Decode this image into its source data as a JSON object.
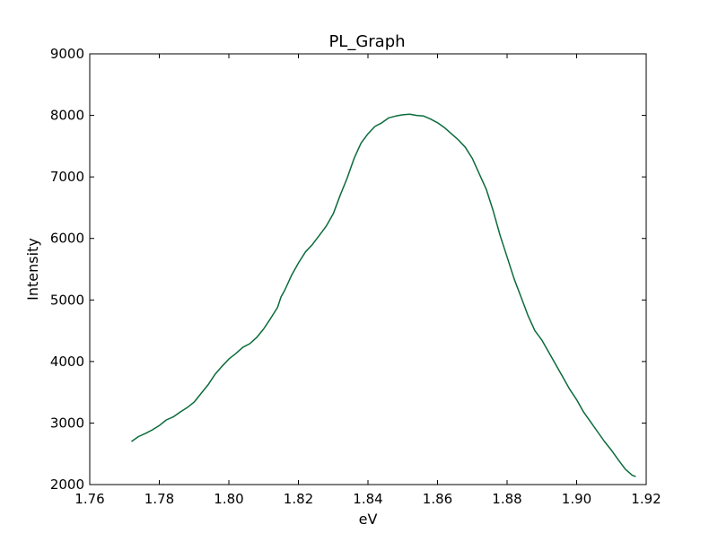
{
  "chart_data": {
    "type": "line",
    "title": "PL_Graph",
    "xlabel": "eV",
    "ylabel": "Intensity",
    "xlim": [
      1.76,
      1.92
    ],
    "ylim": [
      2000,
      9000
    ],
    "x_ticks": [
      "1.76",
      "1.78",
      "1.80",
      "1.82",
      "1.84",
      "1.86",
      "1.88",
      "1.90",
      "1.92"
    ],
    "y_ticks": [
      "2000",
      "3000",
      "4000",
      "5000",
      "6000",
      "7000",
      "8000",
      "9000"
    ],
    "grid": false,
    "line_color": "#0a6b3a",
    "series": [
      {
        "x": [
          1.772,
          1.774,
          1.776,
          1.778,
          1.78,
          1.782,
          1.784,
          1.786,
          1.788,
          1.79,
          1.792,
          1.794,
          1.796,
          1.798,
          1.8,
          1.802,
          1.804,
          1.806,
          1.808,
          1.81,
          1.812,
          1.814,
          1.815,
          1.816,
          1.818,
          1.82,
          1.822,
          1.824,
          1.826,
          1.828,
          1.83,
          1.832,
          1.834,
          1.836,
          1.838,
          1.84,
          1.842,
          1.844,
          1.846,
          1.848,
          1.85,
          1.852,
          1.854,
          1.856,
          1.858,
          1.86,
          1.862,
          1.864,
          1.866,
          1.868,
          1.87,
          1.872,
          1.874,
          1.876,
          1.878,
          1.88,
          1.882,
          1.884,
          1.886,
          1.888,
          1.89,
          1.892,
          1.894,
          1.896,
          1.898,
          1.9,
          1.902,
          1.904,
          1.906,
          1.908,
          1.91,
          1.912,
          1.914,
          1.916,
          1.917
        ],
        "y": [
          2700,
          2780,
          2830,
          2890,
          2960,
          3050,
          3100,
          3180,
          3250,
          3340,
          3480,
          3620,
          3790,
          3920,
          4040,
          4130,
          4230,
          4290,
          4390,
          4530,
          4700,
          4880,
          5050,
          5150,
          5400,
          5600,
          5780,
          5900,
          6050,
          6200,
          6400,
          6700,
          6980,
          7300,
          7550,
          7700,
          7820,
          7880,
          7960,
          7990,
          8010,
          8020,
          8000,
          7990,
          7940,
          7880,
          7800,
          7700,
          7600,
          7480,
          7300,
          7050,
          6800,
          6450,
          6050,
          5700,
          5350,
          5050,
          4750,
          4500,
          4350,
          4150,
          3950,
          3750,
          3550,
          3380,
          3180,
          3020,
          2860,
          2700,
          2560,
          2400,
          2250,
          2150,
          2130
        ]
      }
    ]
  }
}
